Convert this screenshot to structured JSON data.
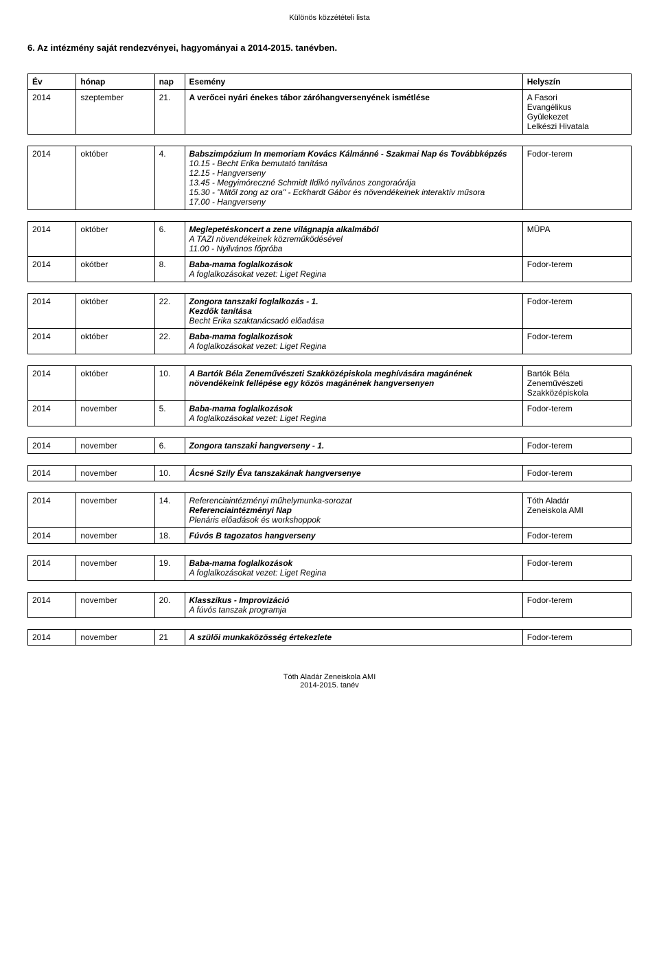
{
  "header": "Különös közzétételi lista",
  "section_title": "6. Az intézmény saját rendezvényei, hagyományai a 2014-2015. tanévben.",
  "columns": {
    "year": "Év",
    "month": "hónap",
    "day": "nap",
    "event": "Esemény",
    "venue": "Helyszín"
  },
  "footer": {
    "line1": "Tóth Aladár Zeneiskola AMI",
    "line2": "2014-2015. tanév"
  },
  "blocks": [
    {
      "show_header": true,
      "rows": [
        {
          "year": "2014",
          "month": "szeptember",
          "day": "21.",
          "event": [
            {
              "t": "A verőcei nyári énekes tábor záróhangversenyének ismétlése",
              "s": "bold"
            }
          ],
          "venue": [
            {
              "t": "A Fasori",
              "s": ""
            },
            {
              "t": "Evangélikus",
              "s": ""
            },
            {
              "t": "Gyülekezet",
              "s": ""
            },
            {
              "t": "Lelkészi Hivatala",
              "s": ""
            }
          ]
        }
      ]
    },
    {
      "rows": [
        {
          "year": "2014",
          "month": "október",
          "day": "4.",
          "event": [
            {
              "t": "Babszimpózium In memoriam Kovács Kálmánné - Szakmai Nap és Továbbképzés",
              "s": "bolditalic"
            },
            {
              "t": "10.15 - Becht Erika bemutató tanítása",
              "s": "italic"
            },
            {
              "t": "12.15 - Hangverseny",
              "s": "italic"
            },
            {
              "t": "13.45 - Megyimóreczné Schmidt Ildikó nyilvános zongoraórája",
              "s": "italic"
            },
            {
              "t": "15.30 - \"Mitől zong az ora\" - Eckhardt Gábor és növendékeinek interaktív műsora",
              "s": "italic"
            },
            {
              "t": "17.00 - Hangverseny",
              "s": "italic"
            }
          ],
          "venue": [
            {
              "t": "Fodor-terem",
              "s": ""
            }
          ]
        }
      ]
    },
    {
      "rows": [
        {
          "year": "2014",
          "month": "október",
          "day": "6.",
          "event": [
            {
              "t": "Meglepetéskoncert a zene világnapja alkalmából",
              "s": "bolditalic"
            },
            {
              "t": "A TAZI növendékeinek közreműködésével",
              "s": "italic"
            },
            {
              "t": "11.00 - Nyilvános főpróba",
              "s": "italic"
            }
          ],
          "venue": [
            {
              "t": "MÜPA",
              "s": ""
            }
          ]
        },
        {
          "year": "2014",
          "month": "okótber",
          "day": "8.",
          "event": [
            {
              "t": "Baba-mama foglalkozások",
              "s": "bolditalic"
            },
            {
              "t": "A foglalkozásokat vezet: Liget Regina",
              "s": "italic"
            }
          ],
          "venue": [
            {
              "t": "Fodor-terem",
              "s": ""
            }
          ]
        }
      ]
    },
    {
      "rows": [
        {
          "year": "2014",
          "month": "október",
          "day": "22.",
          "event": [
            {
              "t": "Zongora tanszaki foglalkozás - 1.",
              "s": "bolditalic"
            },
            {
              "t": "Kezdők tanítása",
              "s": "bolditalic"
            },
            {
              "t": "Becht Erika szaktanácsadó előadása",
              "s": "italic"
            }
          ],
          "venue": [
            {
              "t": "Fodor-terem",
              "s": ""
            }
          ]
        },
        {
          "year": "2014",
          "month": "október",
          "day": "22.",
          "event": [
            {
              "t": "Baba-mama foglalkozások",
              "s": "bolditalic"
            },
            {
              "t": "A foglalkozásokat vezet: Liget Regina",
              "s": "italic"
            }
          ],
          "venue": [
            {
              "t": "Fodor-terem",
              "s": ""
            }
          ]
        }
      ]
    },
    {
      "rows": [
        {
          "year": "2014",
          "month": "október",
          "day": "10.",
          "event": [
            {
              "t": "A Bartók Béla Zeneművészeti Szakközépiskola meghívására magánének növendékeink fellépése egy közös magánének hangversenyen",
              "s": "bolditalic"
            }
          ],
          "venue": [
            {
              "t": "Bartók Béla",
              "s": ""
            },
            {
              "t": "Zeneművészeti",
              "s": ""
            },
            {
              "t": "Szakközépiskola",
              "s": ""
            }
          ]
        },
        {
          "year": "2014",
          "month": "november",
          "day": "5.",
          "event": [
            {
              "t": "Baba-mama foglalkozások",
              "s": "bolditalic"
            },
            {
              "t": "A foglalkozásokat vezet: Liget Regina",
              "s": "italic"
            }
          ],
          "venue": [
            {
              "t": "Fodor-terem",
              "s": ""
            }
          ]
        }
      ]
    },
    {
      "rows": [
        {
          "year": "2014",
          "month": "november",
          "day": "6.",
          "event": [
            {
              "t": "Zongora tanszaki hangverseny - 1.",
              "s": "bolditalic"
            }
          ],
          "venue": [
            {
              "t": "Fodor-terem",
              "s": ""
            }
          ]
        }
      ]
    },
    {
      "rows": [
        {
          "year": "2014",
          "month": "november",
          "day": "10.",
          "event": [
            {
              "t": "Ácsné Szily Éva tanszakának hangversenye",
              "s": "bolditalic"
            }
          ],
          "venue": [
            {
              "t": "Fodor-terem",
              "s": ""
            }
          ]
        }
      ]
    },
    {
      "rows": [
        {
          "year": "2014",
          "month": "november",
          "day": "14.",
          "event": [
            {
              "t": "Referenciaintézményi műhelymunka-sorozat",
              "s": "italic"
            },
            {
              "t": "Referenciaintézményi Nap",
              "s": "bolditalic"
            },
            {
              "t": "Plenáris előadások és workshoppok",
              "s": "italic"
            }
          ],
          "venue": [
            {
              "t": "Tóth Aladár",
              "s": ""
            },
            {
              "t": "Zeneiskola AMI",
              "s": ""
            }
          ]
        },
        {
          "year": "2014",
          "month": "november",
          "day": "18.",
          "event": [
            {
              "t": "Fúvós B tagozatos hangverseny",
              "s": "bolditalic"
            }
          ],
          "venue": [
            {
              "t": "Fodor-terem",
              "s": ""
            }
          ]
        }
      ]
    },
    {
      "rows": [
        {
          "year": "2014",
          "month": "november",
          "day": "19.",
          "event": [
            {
              "t": "Baba-mama foglalkozások",
              "s": "bolditalic"
            },
            {
              "t": "A foglalkozásokat vezet: Liget Regina",
              "s": "italic"
            }
          ],
          "venue": [
            {
              "t": "Fodor-terem",
              "s": ""
            }
          ]
        }
      ]
    },
    {
      "rows": [
        {
          "year": "2014",
          "month": "november",
          "day": "20.",
          "event": [
            {
              "t": "Klasszikus - Improvizáció",
              "s": "bolditalic"
            },
            {
              "t": "A fúvós tanszak programja",
              "s": "italic"
            }
          ],
          "venue": [
            {
              "t": "Fodor-terem",
              "s": ""
            }
          ]
        }
      ]
    },
    {
      "rows": [
        {
          "year": "2014",
          "month": "november",
          "day": "21",
          "event": [
            {
              "t": "A szülői munkaközösség értekezlete",
              "s": "bolditalic"
            }
          ],
          "venue": [
            {
              "t": "Fodor-terem",
              "s": ""
            }
          ]
        }
      ]
    }
  ]
}
